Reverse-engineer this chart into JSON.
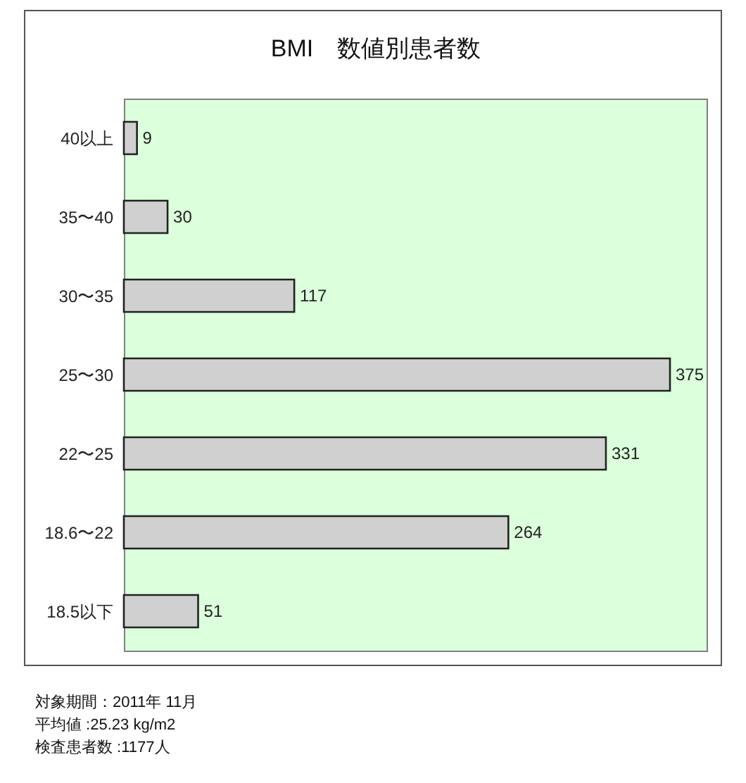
{
  "chart_data": {
    "type": "bar",
    "orientation": "horizontal",
    "title": "BMI　数値別患者数",
    "categories": [
      "40以上",
      "35〜40",
      "30〜35",
      "25〜30",
      "22〜25",
      "18.6〜22",
      "18.5以下"
    ],
    "values": [
      9,
      30,
      117,
      375,
      331,
      264,
      51
    ],
    "color": "#d0d0d0",
    "data_labels": true,
    "annotations": [
      "対象期間：2011年 11月",
      "平均値 :25.23 kg/m2",
      "検査患者数 :1177人"
    ]
  }
}
